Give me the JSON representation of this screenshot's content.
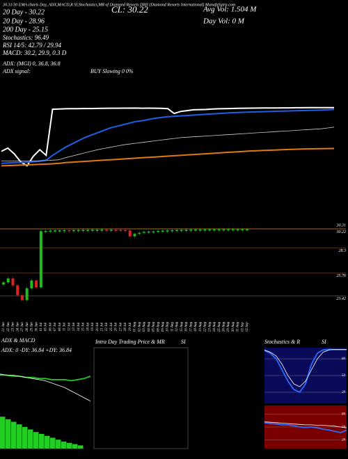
{
  "header": "30.31/30 EMA charts Day, ADX,MACD,R SI,Stochastics,MR of Diamond Resorts DRII (Diamond Resorts International) MunafaSutra.com",
  "indicators": [
    "20 Day - 30.22",
    "20 Day - 28.96",
    "200 Day - 25.15",
    "Stochastics: 96.49",
    "RSI 14/5: 42.79 / 29.94",
    "MACD: 30.2, 29.9, 0.3 D",
    "ADX: (MGI) 0, 36.8, 36.8",
    "ADX signal:",
    "BUY Slowing 0 0%"
  ],
  "close_label": "CL: 30.22",
  "avg_vol": "Avg Vol: 1.504  M",
  "day_vol": "Day Vol: 0  M",
  "chart_data": {
    "type": "line",
    "categories": [
      "21 Jun",
      "22 Jun",
      "23 Jun",
      "24 Jun",
      "27 Jun",
      "28 Jun",
      "29 Jun",
      "30 Jun",
      "01 Jul",
      "05 Jul",
      "06 Jul",
      "07 Jul",
      "08 Jul",
      "11 Jul",
      "12 Jul",
      "13 Jul",
      "14 Jul",
      "15 Jul",
      "18 Jul",
      "19 Jul",
      "20 Jul",
      "21 Jul",
      "22 Jul",
      "25 Jul",
      "26 Jul",
      "27 Jul",
      "28 Jul",
      "29 Jul",
      "01 Aug",
      "02 Aug",
      "03 Aug",
      "04 Aug",
      "05 Aug",
      "08 Aug",
      "09 Aug",
      "10 Aug",
      "11 Aug",
      "12 Aug",
      "15 Aug",
      "16 Aug",
      "17 Aug",
      "18 Aug",
      "19 Aug",
      "22 Aug",
      "23 Aug",
      "24 Aug",
      "25 Aug",
      "26 Aug",
      "29 Aug",
      "30 Aug",
      "31 Aug",
      "01 Sep",
      "02 Sep"
    ],
    "ylim": [
      22,
      31.5
    ],
    "series": [
      {
        "color": "#ffffff",
        "values": [
          24.8,
          25.2,
          24.5,
          23.5,
          23.0,
          24.2,
          25.0,
          24.3,
          30.02,
          30.05,
          30.08,
          30.1,
          30.1,
          30.12,
          30.11,
          30.13,
          30.14,
          30.15,
          30.15,
          30.16,
          30.16,
          30.17,
          30.15,
          30.16,
          30.15,
          30.14,
          30.1,
          29.5,
          29.75,
          29.85,
          29.95,
          29.98,
          30.0,
          30.05,
          30.08,
          30.1,
          30.12,
          30.14,
          30.15,
          30.16,
          30.17,
          30.18,
          30.18,
          30.19,
          30.2,
          30.2,
          30.21,
          30.21,
          30.22,
          30.22,
          30.22,
          30.22,
          30.22
        ]
      },
      {
        "color": "#1f5fe6",
        "values": [
          23.3,
          23.35,
          23.4,
          23.4,
          23.45,
          23.5,
          23.6,
          23.7,
          24.3,
          24.8,
          25.3,
          25.7,
          26.1,
          26.5,
          26.8,
          27.1,
          27.4,
          27.7,
          27.9,
          28.1,
          28.3,
          28.5,
          28.6,
          28.75,
          28.9,
          29.0,
          29.1,
          29.15,
          29.2,
          29.25,
          29.3,
          29.35,
          29.4,
          29.45,
          29.5,
          29.55,
          29.6,
          29.62,
          29.65,
          29.68,
          29.7,
          29.72,
          29.75,
          29.78,
          29.8,
          29.82,
          29.84,
          29.86,
          29.88,
          29.9,
          29.92,
          29.95,
          30.0
        ]
      },
      {
        "color": "#cccccc",
        "values": [
          23.6,
          23.6,
          23.6,
          23.6,
          23.6,
          23.6,
          23.6,
          23.65,
          23.7,
          23.75,
          24.0,
          24.2,
          24.4,
          24.6,
          24.8,
          25.0,
          25.15,
          25.3,
          25.45,
          25.6,
          25.7,
          25.8,
          25.9,
          26.0,
          26.1,
          26.2,
          26.3,
          26.4,
          26.5,
          26.55,
          26.6,
          26.65,
          26.7,
          26.75,
          26.8,
          26.85,
          26.9,
          26.95,
          27.0,
          27.05,
          27.1,
          27.15,
          27.2,
          27.25,
          27.3,
          27.35,
          27.4,
          27.45,
          27.5,
          27.55,
          27.6,
          27.7,
          27.8
        ]
      },
      {
        "color": "#e07a10",
        "values": [
          23.0,
          23.03,
          23.06,
          23.09,
          23.12,
          23.15,
          23.18,
          23.21,
          23.25,
          23.3,
          23.4,
          23.45,
          23.5,
          23.55,
          23.6,
          23.65,
          23.7,
          23.75,
          23.8,
          23.85,
          23.9,
          23.95,
          24.0,
          24.05,
          24.1,
          24.15,
          24.2,
          24.25,
          24.3,
          24.35,
          24.4,
          24.45,
          24.5,
          24.55,
          24.6,
          24.65,
          24.7,
          24.75,
          24.8,
          24.85,
          24.88,
          24.91,
          24.94,
          24.97,
          25.0,
          25.03,
          25.06,
          25.08,
          25.1,
          25.12,
          25.13,
          25.14,
          25.15
        ]
      }
    ],
    "candles": {
      "ylim": [
        22.4,
        30.9
      ],
      "yticks": [
        23.42,
        25.76,
        28.3,
        30.22,
        30.31
      ],
      "up_color": "#22bb22",
      "down_color": "#dd2222"
    },
    "panels": [
      {
        "type": "line",
        "title": "ADX  & MACD",
        "subtitle": "ADX: 0  -DY: 36.84  +DY: 36.84",
        "ylim": [
          20,
          60
        ],
        "series": [
          {
            "color": "#22cc22",
            "values": [
              45,
              45,
              44,
              44,
              43,
              43,
              42,
              42,
              41,
              41,
              41,
              40,
              41,
              42,
              44
            ]
          },
          {
            "color": "#ffffff",
            "values": [
              46,
              45,
              45,
              44,
              43,
              42,
              41,
              40,
              38,
              36,
              34,
              31,
              28,
              25,
              22
            ]
          }
        ]
      },
      {
        "type": "bar",
        "ylim": [
          0,
          6
        ],
        "color": "#22cc22",
        "values": [
          5,
          4.6,
          4.2,
          3.8,
          3.4,
          3.0,
          2.6,
          2.3,
          2,
          1.7,
          1.4,
          1.1,
          0.9,
          0.7,
          0.5
        ]
      },
      {
        "type": "empty",
        "title": "Intra Day Trading Price  & MR",
        "title2": "SI"
      },
      {
        "type": "line",
        "title": "Stochastics & R",
        "title2": "SI",
        "ylim": [
          0,
          100
        ],
        "yticks": [
          20,
          50,
          80
        ],
        "background": "#0a0a5a",
        "series": [
          {
            "color": "#2a6cff",
            "values": [
              95,
              90,
              80,
              60,
              40,
              25,
              20,
              35,
              70,
              90,
              96,
              97,
              96.5,
              96.5,
              96.49
            ]
          },
          {
            "color": "#ffffff",
            "values": [
              96,
              92,
              85,
              70,
              50,
              35,
              30,
              40,
              60,
              80,
              92,
              96,
              97,
              97,
              97
            ]
          }
        ]
      },
      {
        "type": "line",
        "ylim": [
          0,
          100
        ],
        "yticks": [
          20,
          50,
          80
        ],
        "background": "#7a0000",
        "series": [
          {
            "color": "#2a6cff",
            "values": [
              60,
              58,
              57,
              55,
              55,
              53,
              50,
              49,
              50,
              48,
              45,
              43,
              40,
              37,
              42.79
            ]
          },
          {
            "color": "#ffffff",
            "values": [
              62,
              61,
              60,
              59,
              58,
              57,
              56,
              55,
              55,
              54,
              54,
              53,
              52,
              50,
              48
            ]
          }
        ]
      }
    ]
  }
}
